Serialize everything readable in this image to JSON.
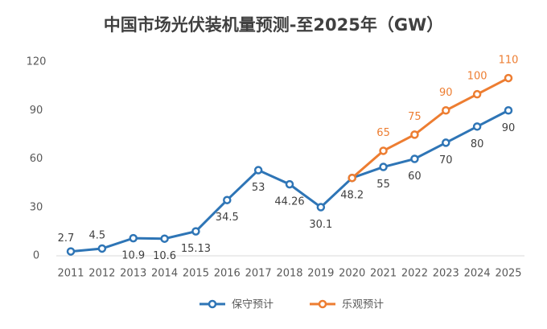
{
  "chart_data": {
    "type": "line",
    "title": "中国市场光伏装机量预测-至2025年（GW）",
    "categories": [
      "2011",
      "2012",
      "2013",
      "2014",
      "2015",
      "2016",
      "2017",
      "2018",
      "2019",
      "2020",
      "2021",
      "2022",
      "2023",
      "2024",
      "2025"
    ],
    "series": [
      {
        "name": "保守预计",
        "color": "#2e75b6",
        "values": [
          2.7,
          4.5,
          10.9,
          10.6,
          15.13,
          34.5,
          53,
          44.26,
          30.1,
          48.2,
          55,
          60,
          70,
          80,
          90
        ]
      },
      {
        "name": "乐观预计",
        "color": "#ed7d31",
        "values": [
          null,
          null,
          null,
          null,
          null,
          null,
          null,
          null,
          null,
          48.2,
          65,
          75,
          90,
          100,
          110
        ]
      }
    ],
    "ylim": [
      0,
      120
    ],
    "yticks": [
      0,
      30,
      60,
      90,
      120
    ],
    "legend": "bottom"
  }
}
